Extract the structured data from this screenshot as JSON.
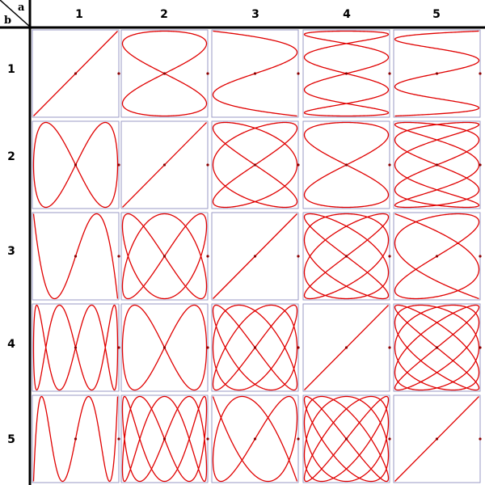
{
  "corner": {
    "a_label": "a",
    "b_label": "b"
  },
  "columns": [
    {
      "label": "1",
      "a": 1
    },
    {
      "label": "2",
      "a": 2
    },
    {
      "label": "3",
      "a": 3
    },
    {
      "label": "4",
      "a": 4
    },
    {
      "label": "5",
      "a": 5
    }
  ],
  "rows": [
    {
      "label": "1",
      "b": 1
    },
    {
      "label": "2",
      "b": 2
    },
    {
      "label": "3",
      "b": 3
    },
    {
      "label": "4",
      "b": 4
    },
    {
      "label": "5",
      "b": 5
    }
  ],
  "colors": {
    "curve": "#e00000",
    "cell_border": "#9a9ac4",
    "grid_line": "#000000",
    "marker": "#8b0000"
  },
  "curve_type": "lissajous"
}
